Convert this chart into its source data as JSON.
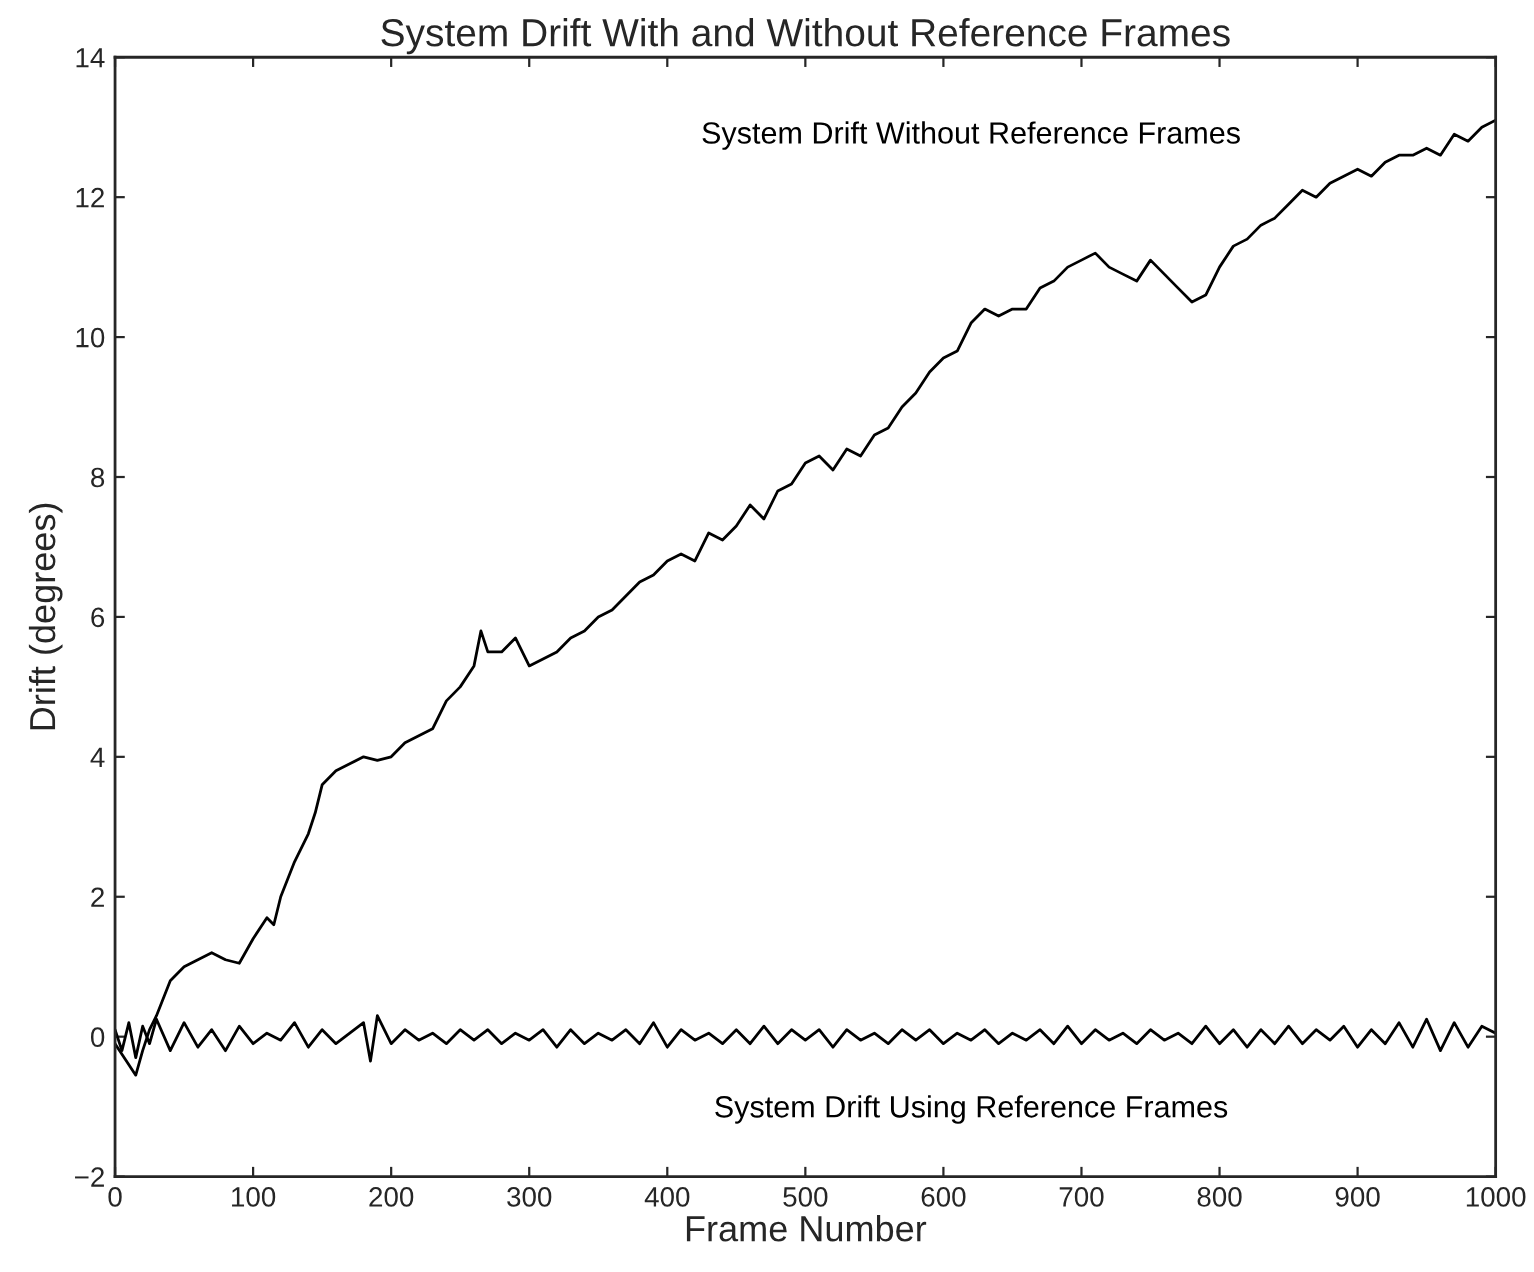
{
  "chart_data": {
    "type": "line",
    "title": "System Drift With and Without Reference Frames",
    "xlabel": "Frame Number",
    "ylabel": "Drift (degrees)",
    "xlim": [
      0,
      1000
    ],
    "ylim": [
      -2,
      14
    ],
    "xticks": [
      0,
      100,
      200,
      300,
      400,
      500,
      600,
      700,
      800,
      900,
      1000
    ],
    "yticks": [
      {
        "value": -2,
        "label": "−2"
      },
      0,
      2,
      4,
      6,
      8,
      10,
      12,
      14
    ],
    "grid": false,
    "legend": false,
    "marker": "none",
    "line_style": "solid",
    "series": [
      {
        "name": "System Drift Without Reference Frames",
        "color": "#000000",
        "x": [
          0,
          10,
          15,
          20,
          25,
          30,
          40,
          50,
          60,
          70,
          80,
          90,
          100,
          110,
          115,
          120,
          130,
          140,
          145,
          150,
          160,
          170,
          180,
          190,
          200,
          210,
          220,
          230,
          240,
          250,
          260,
          265,
          270,
          280,
          290,
          300,
          310,
          320,
          330,
          340,
          350,
          360,
          370,
          380,
          390,
          400,
          410,
          420,
          430,
          440,
          450,
          460,
          470,
          480,
          490,
          500,
          510,
          520,
          530,
          540,
          550,
          560,
          570,
          580,
          590,
          600,
          610,
          620,
          630,
          640,
          650,
          660,
          670,
          680,
          690,
          700,
          710,
          720,
          730,
          740,
          750,
          760,
          770,
          780,
          790,
          800,
          810,
          820,
          830,
          840,
          850,
          860,
          870,
          880,
          890,
          900,
          910,
          920,
          930,
          940,
          950,
          960,
          970,
          980,
          990,
          1000
        ],
        "values": [
          -0.1,
          -0.4,
          -0.55,
          -0.2,
          0.1,
          0.3,
          0.8,
          1.0,
          1.1,
          1.2,
          1.1,
          1.05,
          1.4,
          1.7,
          1.6,
          2.0,
          2.5,
          2.9,
          3.2,
          3.6,
          3.8,
          3.9,
          4.0,
          3.95,
          4.0,
          4.2,
          4.3,
          4.4,
          4.8,
          5.0,
          5.3,
          5.8,
          5.5,
          5.5,
          5.7,
          5.3,
          5.4,
          5.5,
          5.7,
          5.8,
          6.0,
          6.1,
          6.3,
          6.5,
          6.6,
          6.8,
          6.9,
          6.8,
          7.2,
          7.1,
          7.3,
          7.6,
          7.4,
          7.8,
          7.9,
          8.2,
          8.3,
          8.1,
          8.4,
          8.3,
          8.6,
          8.7,
          9.0,
          9.2,
          9.5,
          9.7,
          9.8,
          10.2,
          10.4,
          10.3,
          10.4,
          10.4,
          10.7,
          10.8,
          11.0,
          11.1,
          11.2,
          11.0,
          10.9,
          10.8,
          11.1,
          10.9,
          10.7,
          10.5,
          10.6,
          11.0,
          11.3,
          11.4,
          11.6,
          11.7,
          11.9,
          12.1,
          12.0,
          12.2,
          12.3,
          12.4,
          12.3,
          12.5,
          12.6,
          12.6,
          12.7,
          12.6,
          12.9,
          12.8,
          13.0,
          13.1
        ]
      },
      {
        "name": "System Drift Using Reference Frames",
        "color": "#000000",
        "x": [
          0,
          5,
          10,
          15,
          20,
          25,
          30,
          40,
          50,
          60,
          70,
          80,
          90,
          100,
          110,
          120,
          130,
          140,
          150,
          160,
          170,
          180,
          185,
          190,
          200,
          210,
          220,
          230,
          240,
          250,
          260,
          270,
          280,
          290,
          300,
          310,
          320,
          330,
          340,
          350,
          360,
          370,
          380,
          390,
          400,
          410,
          420,
          430,
          440,
          450,
          460,
          470,
          480,
          490,
          500,
          510,
          520,
          530,
          540,
          550,
          560,
          570,
          580,
          590,
          600,
          610,
          620,
          630,
          640,
          650,
          660,
          670,
          680,
          690,
          700,
          710,
          720,
          730,
          740,
          750,
          760,
          770,
          780,
          790,
          800,
          810,
          820,
          830,
          840,
          850,
          860,
          870,
          880,
          890,
          900,
          910,
          920,
          930,
          940,
          950,
          960,
          970,
          980,
          990,
          1000
        ],
        "values": [
          0.1,
          -0.2,
          0.2,
          -0.3,
          0.15,
          -0.1,
          0.25,
          -0.2,
          0.2,
          -0.15,
          0.1,
          -0.2,
          0.15,
          -0.1,
          0.05,
          -0.05,
          0.2,
          -0.15,
          0.1,
          -0.1,
          0.05,
          0.2,
          -0.35,
          0.3,
          -0.1,
          0.1,
          -0.05,
          0.05,
          -0.1,
          0.1,
          -0.05,
          0.1,
          -0.1,
          0.05,
          -0.05,
          0.1,
          -0.15,
          0.1,
          -0.1,
          0.05,
          -0.05,
          0.1,
          -0.1,
          0.2,
          -0.15,
          0.1,
          -0.05,
          0.05,
          -0.1,
          0.1,
          -0.1,
          0.15,
          -0.1,
          0.1,
          -0.05,
          0.1,
          -0.15,
          0.1,
          -0.05,
          0.05,
          -0.1,
          0.1,
          -0.05,
          0.1,
          -0.1,
          0.05,
          -0.05,
          0.1,
          -0.1,
          0.05,
          -0.05,
          0.1,
          -0.1,
          0.15,
          -0.1,
          0.1,
          -0.05,
          0.05,
          -0.1,
          0.1,
          -0.05,
          0.05,
          -0.1,
          0.15,
          -0.1,
          0.1,
          -0.15,
          0.1,
          -0.1,
          0.15,
          -0.1,
          0.1,
          -0.05,
          0.15,
          -0.15,
          0.1,
          -0.1,
          0.2,
          -0.15,
          0.25,
          -0.2,
          0.2,
          -0.15,
          0.15,
          0.05
        ]
      }
    ]
  }
}
